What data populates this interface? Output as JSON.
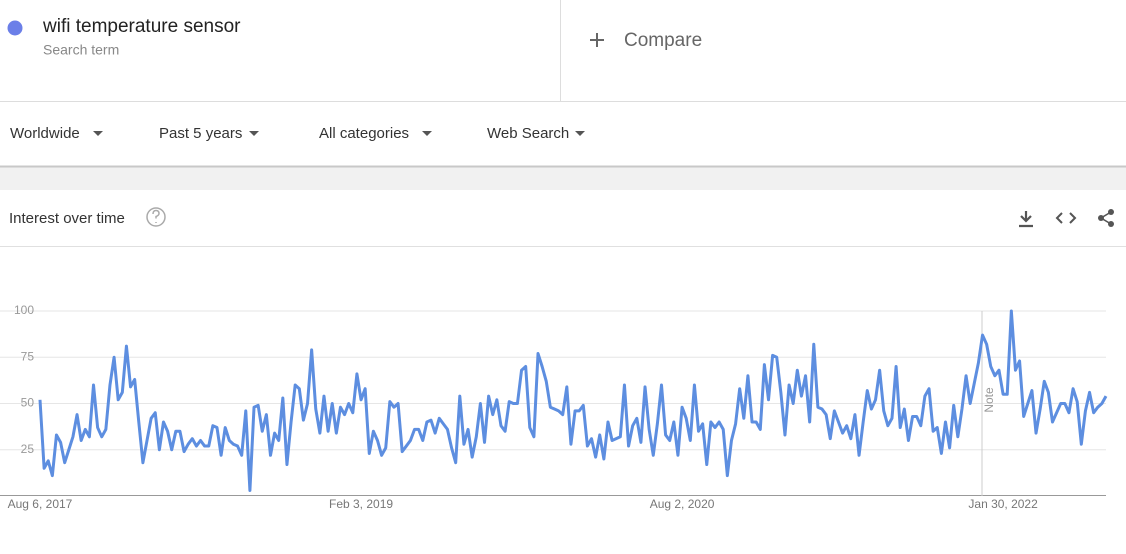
{
  "search_term": {
    "label": "wifi temperature sensor",
    "sublabel": "Search term"
  },
  "compare": "Compare",
  "filters": [
    "Worldwide",
    "Past 5 years",
    "All categories",
    "Web Search"
  ],
  "card_title": "Interest over time",
  "chart_data": {
    "type": "line",
    "note": "Note",
    "color": "#5d8ee0",
    "ylim": [
      0,
      100
    ],
    "yticks": [
      25,
      50,
      75,
      100
    ],
    "grid": true,
    "categories": [
      "Aug 6, 2017",
      null,
      null,
      null,
      null,
      null,
      null,
      null,
      null,
      null,
      null,
      null,
      null,
      null,
      null,
      null,
      null,
      null,
      null,
      null,
      null,
      null,
      null,
      null,
      null,
      null,
      null,
      null,
      null,
      null,
      null,
      null,
      null,
      null,
      null,
      null,
      null,
      null,
      null,
      null,
      null,
      null,
      null,
      null,
      null,
      null,
      null,
      null,
      null,
      null,
      null,
      null,
      null,
      null,
      null,
      null,
      null,
      null,
      null,
      null,
      null,
      null,
      null,
      null,
      null,
      null,
      null,
      null,
      null,
      null,
      null,
      null,
      null,
      null,
      null,
      null,
      null,
      null,
      "Feb 3, 2019",
      null,
      null,
      null,
      null,
      null,
      null,
      null,
      null,
      null,
      null,
      null,
      null,
      null,
      null,
      null,
      null,
      null,
      null,
      null,
      null,
      null,
      null,
      null,
      null,
      null,
      null,
      null,
      null,
      null,
      null,
      null,
      null,
      null,
      null,
      null,
      null,
      null,
      null,
      null,
      null,
      null,
      null,
      null,
      null,
      null,
      null,
      null,
      null,
      null,
      null,
      null,
      null,
      null,
      null,
      null,
      null,
      null,
      null,
      null,
      null,
      null,
      null,
      null,
      null,
      null,
      null,
      null,
      null,
      null,
      null,
      null,
      null,
      null,
      null,
      null,
      null,
      null,
      "Aug 2, 2020",
      null,
      null,
      null,
      null,
      null,
      null,
      null,
      null,
      null,
      null,
      null,
      null,
      null,
      null,
      null,
      null,
      null,
      null,
      null,
      null,
      null,
      null,
      null,
      null,
      null,
      null,
      null,
      null,
      null,
      null,
      null,
      null,
      null,
      null,
      null,
      null,
      null,
      null,
      null,
      null,
      null,
      null,
      null,
      null,
      null,
      null,
      null,
      null,
      null,
      null,
      null,
      null,
      null,
      null,
      null,
      null,
      null,
      null,
      null,
      null,
      null,
      null,
      null,
      null,
      null,
      null,
      null,
      null,
      null,
      null,
      null,
      null,
      null,
      null,
      null,
      null,
      null,
      "Jan 30, 2022",
      null,
      null,
      null,
      null,
      null,
      null,
      null,
      null,
      null,
      null,
      null,
      null,
      null,
      null,
      null,
      null,
      null,
      null,
      null,
      null,
      null,
      null,
      null,
      null,
      null
    ],
    "values": [
      52,
      15,
      19,
      11,
      33,
      29,
      18,
      25,
      32,
      44,
      30,
      36,
      32,
      60,
      37,
      32,
      36,
      60,
      75,
      52,
      56,
      81,
      59,
      63,
      40,
      18,
      30,
      42,
      45,
      25,
      40,
      35,
      25,
      35,
      35,
      24,
      28,
      31,
      27,
      30,
      27,
      27,
      38,
      37,
      22,
      37,
      30,
      28,
      27,
      22,
      46,
      3,
      48,
      49,
      35,
      44,
      22,
      34,
      30,
      53,
      17,
      40,
      60,
      58,
      41,
      50,
      79,
      47,
      34,
      54,
      35,
      50,
      34,
      48,
      44,
      50,
      45,
      66,
      52,
      58,
      23,
      35,
      30,
      22,
      26,
      51,
      48,
      50,
      24,
      27,
      30,
      36,
      36,
      30,
      40,
      41,
      34,
      42,
      39,
      36,
      26,
      18,
      54,
      28,
      36,
      21,
      32,
      50,
      29,
      54,
      44,
      52,
      38,
      35,
      51,
      50,
      50,
      68,
      70,
      37,
      32,
      77,
      70,
      62,
      48,
      47,
      46,
      44,
      59,
      28,
      46,
      46,
      49,
      27,
      31,
      21,
      33,
      20,
      40,
      30,
      31,
      32,
      60,
      27,
      38,
      42,
      29,
      59,
      36,
      22,
      39,
      60,
      33,
      30,
      40,
      22,
      48,
      42,
      30,
      60,
      35,
      39,
      17,
      40,
      37,
      40,
      36,
      11,
      30,
      39,
      58,
      42,
      65,
      40,
      40,
      36,
      71,
      52,
      76,
      75,
      56,
      33,
      60,
      50,
      68,
      54,
      65,
      40,
      82,
      48,
      47,
      44,
      31,
      46,
      40,
      34,
      38,
      31,
      44,
      22,
      40,
      57,
      47,
      52,
      68,
      46,
      38,
      42,
      70,
      37,
      47,
      30,
      43,
      43,
      38,
      54,
      58,
      35,
      37,
      23,
      40,
      26,
      49,
      32,
      47,
      65,
      50,
      61,
      72,
      87,
      82,
      70,
      65,
      68,
      55,
      55,
      100,
      68,
      73,
      43,
      50,
      57,
      34,
      47,
      62,
      56,
      40,
      45,
      50,
      50,
      45,
      58,
      51,
      28,
      46,
      56,
      45,
      48,
      50,
      54
    ]
  }
}
